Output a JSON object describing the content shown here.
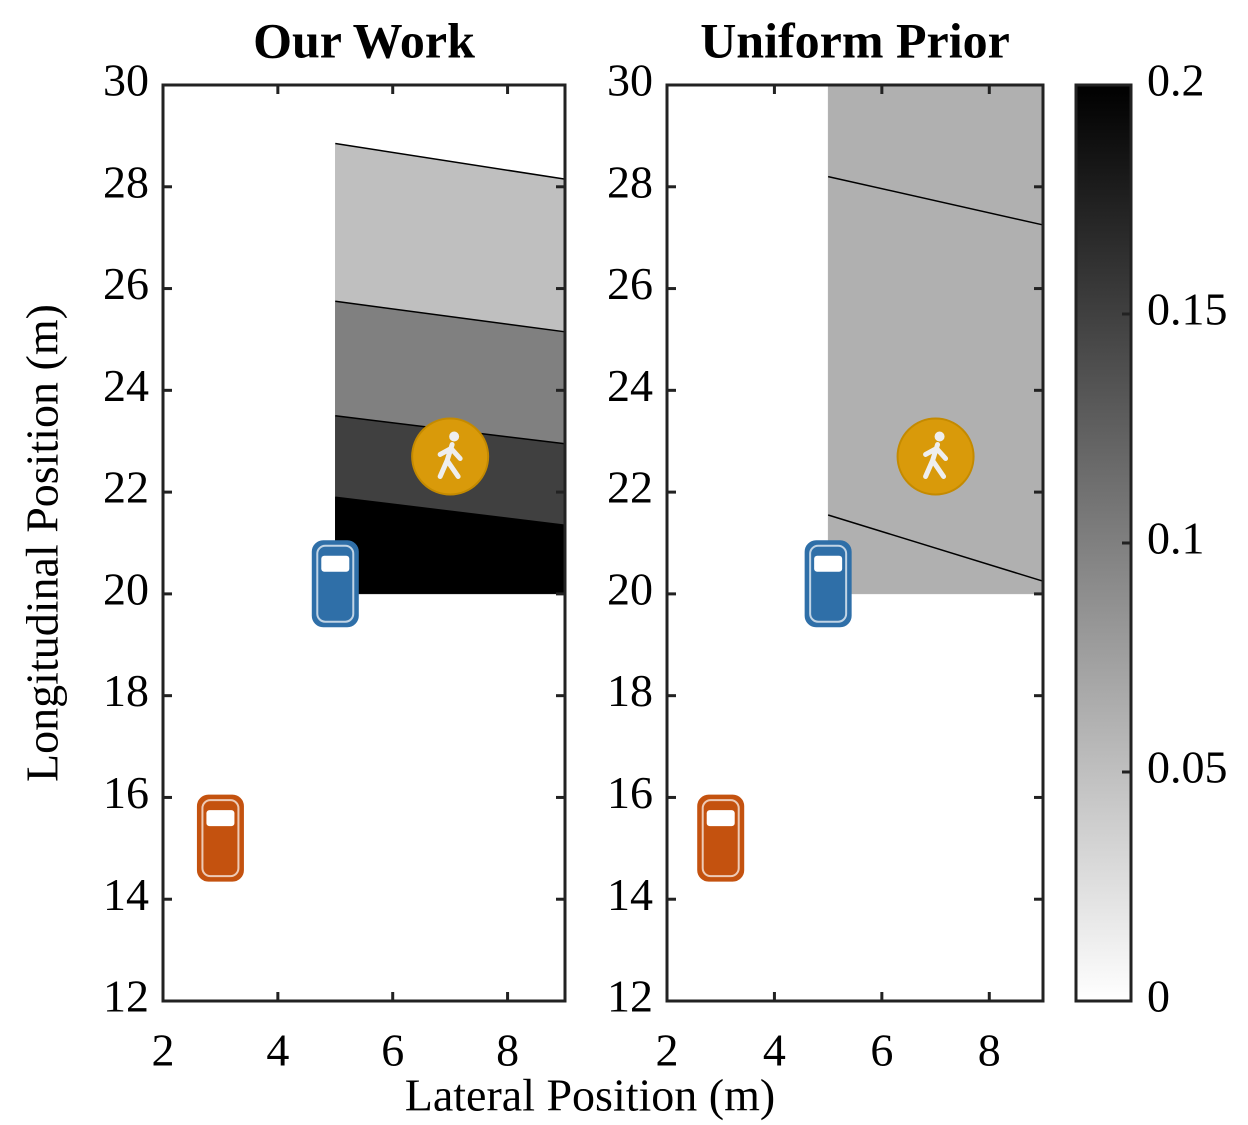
{
  "chart_data": [
    {
      "type": "contour",
      "title": "Our Work",
      "ylabel": "Longitudinal Position (m)",
      "xlabel": "Lateral Position (m)",
      "xlim": [
        2,
        9
      ],
      "ylim": [
        12,
        30
      ],
      "xticks": [
        2,
        4,
        6,
        8
      ],
      "yticks": [
        12,
        14,
        16,
        18,
        20,
        22,
        24,
        26,
        28,
        30
      ],
      "region_x": [
        5,
        9
      ],
      "region_y": [
        20,
        30
      ],
      "contour_lines": [
        {
          "x": [
            5,
            9
          ],
          "y": [
            28.85,
            28.15
          ]
        },
        {
          "x": [
            5,
            9
          ],
          "y": [
            25.75,
            25.15
          ]
        },
        {
          "x": [
            5,
            9
          ],
          "y": [
            23.5,
            22.95
          ]
        },
        {
          "x": [
            5,
            9
          ],
          "y": [
            21.9,
            21.35
          ]
        }
      ],
      "bands": [
        0,
        0.05,
        0.1,
        0.15,
        0.2
      ],
      "objects": [
        {
          "kind": "car",
          "color": "#2f6fa8",
          "x": 5,
          "y": 20.2
        },
        {
          "kind": "car",
          "color": "#c4520f",
          "x": 3,
          "y": 15.2
        },
        {
          "kind": "pedestrian",
          "color": "#d99a0a",
          "x": 7,
          "y": 22.7
        }
      ]
    },
    {
      "type": "contour",
      "title": "Uniform Prior",
      "xlim": [
        2,
        9
      ],
      "ylim": [
        12,
        30
      ],
      "xticks": [
        2,
        4,
        6,
        8
      ],
      "yticks": [
        12,
        14,
        16,
        18,
        20,
        22,
        24,
        26,
        28,
        30
      ],
      "region_x": [
        5,
        9
      ],
      "region_y": [
        20,
        30
      ],
      "contour_lines": [
        {
          "x": [
            5,
            9
          ],
          "y": [
            28.2,
            27.25
          ]
        },
        {
          "x": [
            5,
            9
          ],
          "y": [
            21.55,
            20.25
          ]
        }
      ],
      "bands": [
        0.062,
        0.062,
        0.062
      ],
      "objects": [
        {
          "kind": "car",
          "color": "#2f6fa8",
          "x": 5,
          "y": 20.2
        },
        {
          "kind": "car",
          "color": "#c4520f",
          "x": 3,
          "y": 15.2
        },
        {
          "kind": "pedestrian",
          "color": "#d99a0a",
          "x": 7,
          "y": 22.7
        }
      ],
      "colormap": "gray",
      "clim": [
        0,
        0.2
      ],
      "cticks": [
        0,
        0.05,
        0.1,
        0.15,
        0.2
      ]
    }
  ]
}
